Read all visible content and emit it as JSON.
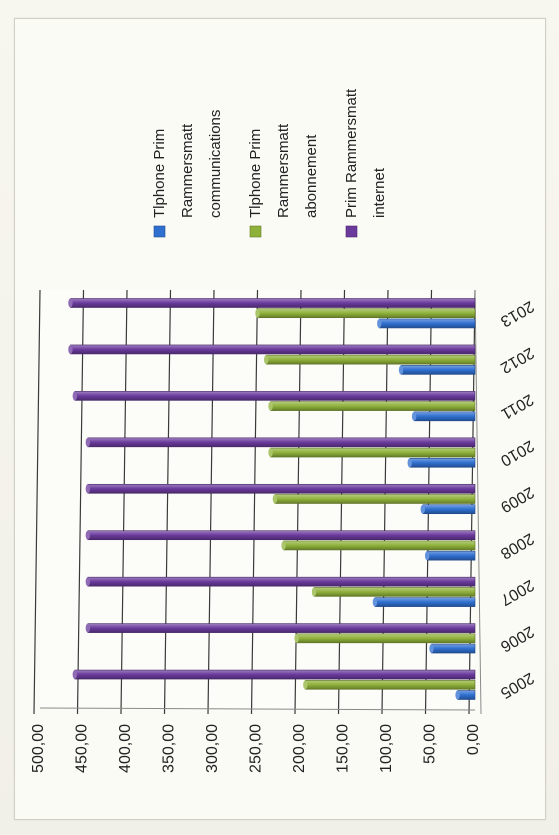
{
  "chart_data": {
    "type": "bar",
    "orientation": "horizontal-rotated",
    "categories": [
      "2005",
      "2006",
      "2007",
      "2008",
      "2009",
      "2010",
      "2011",
      "2012",
      "2013"
    ],
    "series": [
      {
        "name": "Tlphone Prim Rammersmatt communications",
        "legend_lines": [
          "Tlphone Prim",
          "Rammersmatt",
          "communications"
        ],
        "color": "#2f6fd0",
        "values": [
          20,
          50,
          115,
          55,
          60,
          75,
          70,
          85,
          110
        ]
      },
      {
        "name": "Tlphone Prim Rammersmatt abonnement",
        "legend_lines": [
          "Tlphone Prim",
          "Rammersmatt",
          "abonnement"
        ],
        "color": "#8fb13a",
        "values": [
          195,
          205,
          185,
          220,
          230,
          235,
          235,
          240,
          250
        ]
      },
      {
        "name": "Prim Rammersmatt internet",
        "legend_lines": [
          "Prim Rammersmatt",
          "internet"
        ],
        "color": "#6a3a9c",
        "values": [
          460,
          445,
          445,
          445,
          445,
          445,
          460,
          465,
          465
        ]
      }
    ],
    "value_axis": {
      "ticks": [
        "0,00",
        "50,00",
        "100,00",
        "150,00",
        "200,00",
        "250,00",
        "300,00",
        "350,00",
        "400,00",
        "450,00",
        "500,00"
      ],
      "min": 0,
      "max": 500
    },
    "grid": true,
    "legend_position": "right"
  }
}
